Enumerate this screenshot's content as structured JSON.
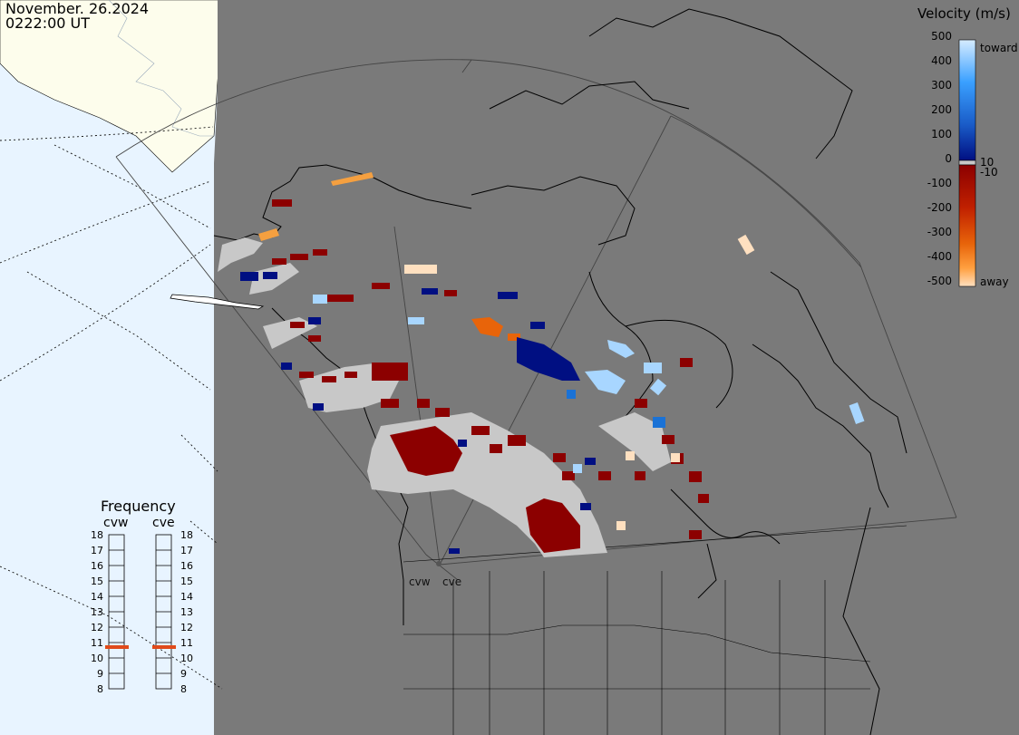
{
  "header": {
    "date": "November. 26.2024",
    "time": "0222:00 UT"
  },
  "velocity_legend": {
    "title": "Velocity (m/s)",
    "ticks": [
      "500",
      "400",
      "300",
      "200",
      "100",
      "0",
      "-100",
      "-200",
      "-300",
      "-400",
      "-500"
    ],
    "inner_ticks": {
      "pos": "10",
      "neg": "-10"
    },
    "toward_label": "toward",
    "away_label": "away",
    "colors": {
      "toward_high": "#d6ecff",
      "toward_mid": "#1a72d6",
      "toward_low": "#000f82",
      "away_low": "#8c0000",
      "away_mid": "#e8640a",
      "away_high": "#ffe0c0",
      "ground_scatter": "#c8c8c8"
    }
  },
  "frequency_panel": {
    "title": "Frequency",
    "radars": [
      "cvw",
      "cve"
    ],
    "scale": [
      "18",
      "17",
      "16",
      "15",
      "14",
      "13",
      "12",
      "11",
      "10",
      "9",
      "8"
    ],
    "cvw_mhz": 11,
    "cve_mhz": 11,
    "marker_color": "#e04a1a"
  },
  "site_labels": {
    "west": "cvw",
    "east": "cve"
  },
  "map_colors": {
    "ocean": "#e8f4ff",
    "land_outside": "#fdfdec",
    "radar_field": "#7a7a7a",
    "coast": "#000000"
  }
}
